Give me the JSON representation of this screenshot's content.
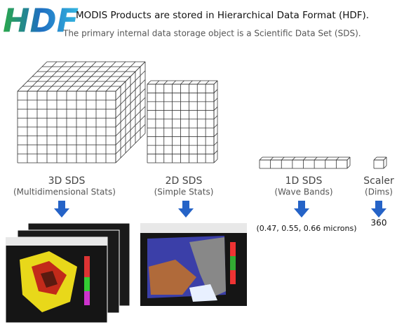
{
  "logo": "HDF",
  "header": {
    "title": "MODIS Products are stored in Hierarchical Data Format (HDF).",
    "subtitle": "The primary internal data storage object is a Scientific Data Set (SDS)."
  },
  "items": [
    {
      "label": "3D SDS",
      "sublabel": "(Multidimensional Stats)"
    },
    {
      "label": "2D SDS",
      "sublabel": "(Simple Stats)"
    },
    {
      "label": "1D SDS",
      "sublabel": "(Wave Bands)",
      "note": "(0.47, 0.55, 0.66 microns)"
    },
    {
      "label": "Scaler",
      "sublabel": "(Dims)",
      "note": "360"
    }
  ]
}
